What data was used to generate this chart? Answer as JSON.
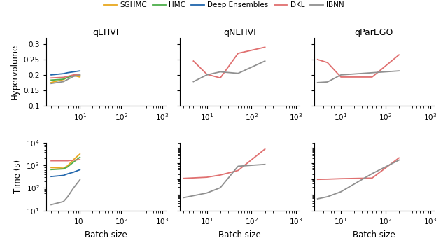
{
  "legend_labels": [
    "SGHMC",
    "HMC",
    "Deep Ensembles",
    "DKL",
    "IBNN"
  ],
  "legend_colors": [
    "#E8A820",
    "#4DAF4A",
    "#2166AC",
    "#E07070",
    "#909090"
  ],
  "col_titles": [
    "qEHVI",
    "qNEHVI",
    "qParEGO"
  ],
  "row_ylabels": [
    "Hypervolume",
    "Time (s)"
  ],
  "xlabel": "Batch size",
  "hv_qEHVI": {
    "SGHMC": {
      "x": [
        2,
        4,
        5,
        7,
        10
      ],
      "y": [
        0.175,
        0.185,
        0.192,
        0.198,
        0.193
      ]
    },
    "HMC": {
      "x": [
        2,
        4,
        5,
        7,
        10
      ],
      "y": [
        0.183,
        0.186,
        0.192,
        0.198,
        0.2
      ]
    },
    "DeepEns": {
      "x": [
        2,
        4,
        5,
        7,
        10
      ],
      "y": [
        0.2,
        0.204,
        0.207,
        0.21,
        0.213
      ]
    },
    "DKL": {
      "x": [
        2,
        4,
        5,
        7,
        10
      ],
      "y": [
        0.19,
        0.192,
        0.195,
        0.2,
        0.2
      ]
    },
    "IBNN": {
      "x": [
        2,
        4,
        5,
        7,
        10
      ],
      "y": [
        0.172,
        0.178,
        0.185,
        0.195,
        0.2
      ]
    }
  },
  "hv_qNEHVI": {
    "SGHMC": {
      "x": [],
      "y": []
    },
    "HMC": {
      "x": [],
      "y": []
    },
    "DeepEns": {
      "x": [],
      "y": []
    },
    "DKL": {
      "x": [
        5,
        10,
        20,
        50,
        200
      ],
      "y": [
        0.245,
        0.202,
        0.19,
        0.27,
        0.29
      ]
    },
    "IBNN": {
      "x": [
        5,
        10,
        20,
        50,
        200
      ],
      "y": [
        0.178,
        0.2,
        0.21,
        0.205,
        0.245
      ]
    }
  },
  "hv_qParEGO": {
    "SGHMC": {
      "x": [],
      "y": []
    },
    "HMC": {
      "x": [],
      "y": []
    },
    "DeepEns": {
      "x": [],
      "y": []
    },
    "DKL": {
      "x": [
        3,
        5,
        10,
        50,
        200
      ],
      "y": [
        0.25,
        0.24,
        0.193,
        0.193,
        0.265
      ]
    },
    "IBNN": {
      "x": [
        3,
        5,
        10,
        50,
        200
      ],
      "y": [
        0.175,
        0.177,
        0.2,
        0.207,
        0.213
      ]
    }
  },
  "time_qEHVI": {
    "SGHMC": {
      "x": [
        2,
        4,
        5,
        7,
        10
      ],
      "y": [
        800,
        750,
        950,
        1800,
        3200
      ]
    },
    "HMC": {
      "x": [
        2,
        4,
        5,
        7,
        10
      ],
      "y": [
        650,
        700,
        850,
        1400,
        2300
      ]
    },
    "DeepEns": {
      "x": [
        2,
        4,
        5,
        7,
        10
      ],
      "y": [
        320,
        360,
        420,
        500,
        640
      ]
    },
    "DKL": {
      "x": [
        2,
        4,
        5,
        7,
        10
      ],
      "y": [
        1600,
        1600,
        1600,
        1700,
        1800
      ]
    },
    "IBNN": {
      "x": [
        2,
        4,
        5,
        7,
        10
      ],
      "y": [
        18,
        25,
        40,
        100,
        230
      ]
    }
  },
  "time_qNEHVI": {
    "SGHMC": {
      "x": [],
      "y": []
    },
    "HMC": {
      "x": [],
      "y": []
    },
    "DeepEns": {
      "x": [],
      "y": []
    },
    "DKL": {
      "x": [
        3,
        10,
        20,
        50,
        200
      ],
      "y": [
        1100,
        1300,
        1800,
        3500,
        80000
      ]
    },
    "IBNN": {
      "x": [
        3,
        10,
        20,
        50,
        200
      ],
      "y": [
        65,
        130,
        280,
        6500,
        8500
      ]
    }
  },
  "time_qParEGO": {
    "SGHMC": {
      "x": [],
      "y": []
    },
    "HMC": {
      "x": [],
      "y": []
    },
    "DeepEns": {
      "x": [],
      "y": []
    },
    "DKL": {
      "x": [
        3,
        5,
        10,
        50,
        200
      ],
      "y": [
        950,
        980,
        1050,
        1150,
        22000
      ]
    },
    "IBNN": {
      "x": [
        3,
        5,
        10,
        50,
        200
      ],
      "y": [
        55,
        75,
        155,
        2200,
        16000
      ]
    }
  },
  "hv_ylim": [
    0.1,
    0.32
  ],
  "hv_yticks": [
    0.1,
    0.15,
    0.2,
    0.25,
    0.3
  ],
  "time_ylim_qEHVI": [
    10,
    10000.0
  ],
  "time_ylim_qNEHVI": [
    10,
    200000.0
  ],
  "time_ylim_qParEGO": [
    10,
    200000.0
  ],
  "xlim_qEHVI": [
    1.5,
    1200
  ],
  "xlim_qNEHVI": [
    2.5,
    1200
  ],
  "xlim_qParEGO": [
    2.5,
    1200
  ]
}
